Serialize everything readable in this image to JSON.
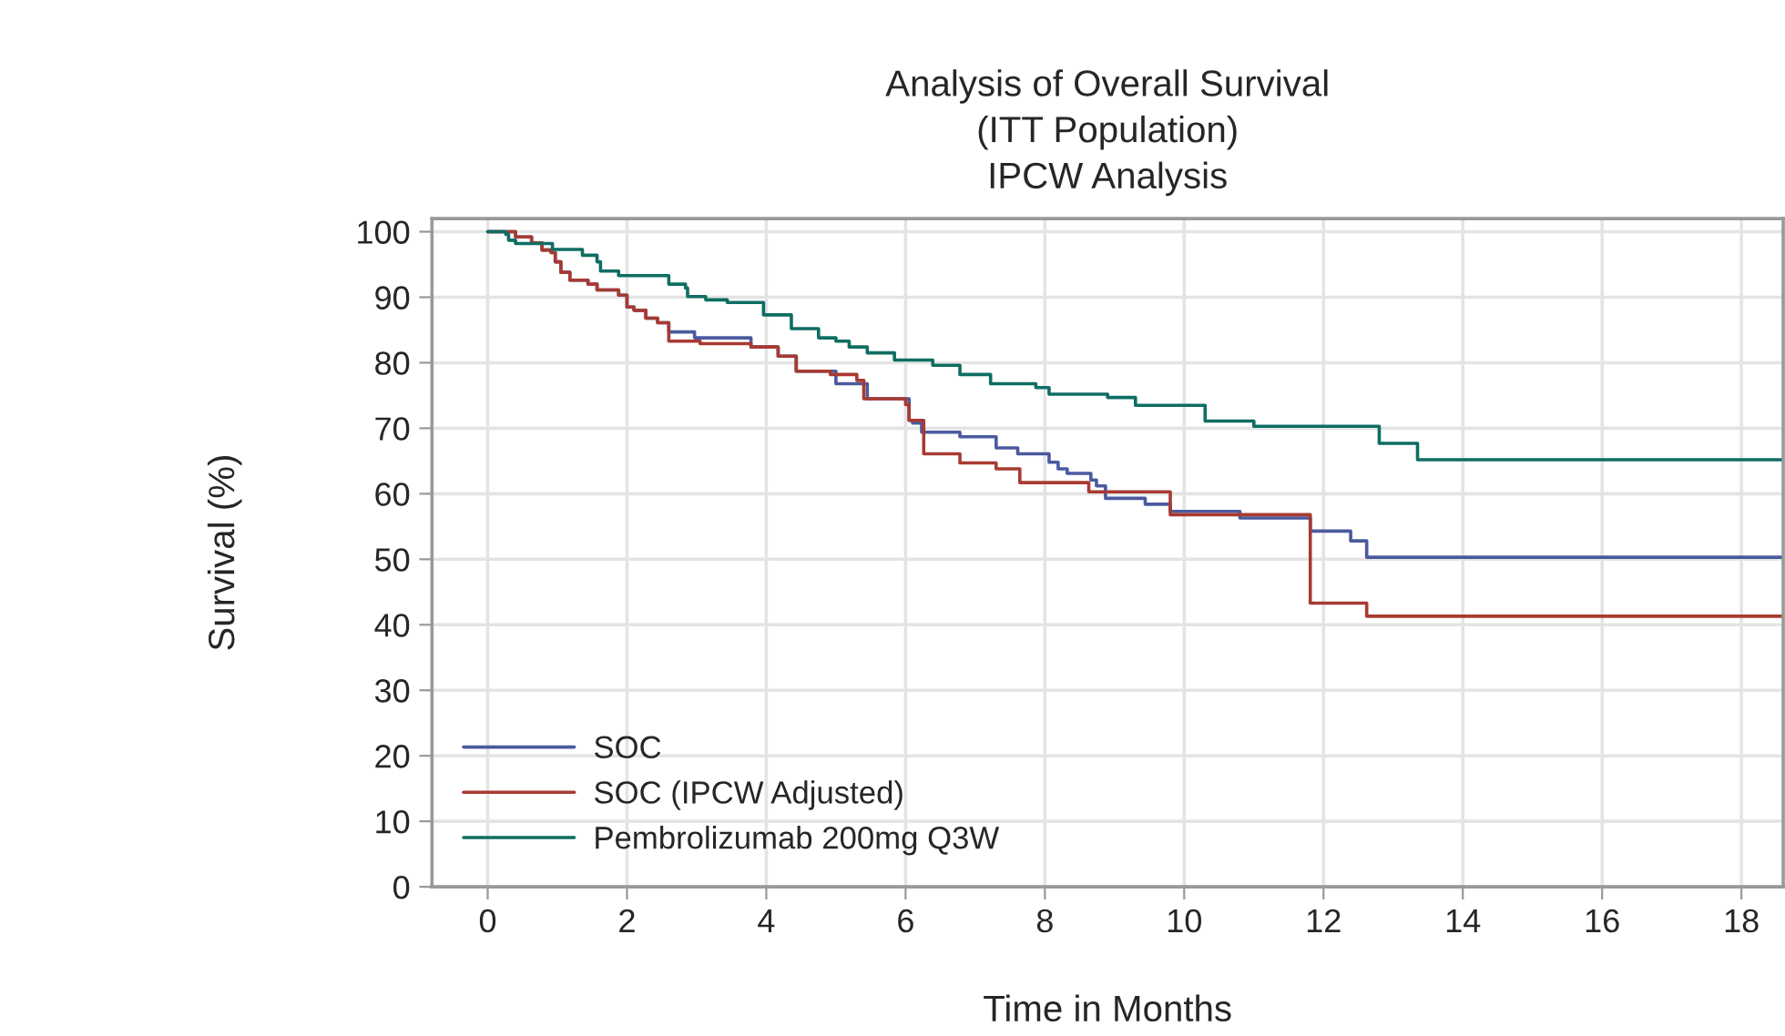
{
  "chart_data": {
    "type": "step",
    "title": "Analysis of Overall Survival\n(ITT Population)\nIPCW Analysis",
    "xlabel": "Time in Months",
    "ylabel": "Survival (%)",
    "xlim": [
      -0.8,
      18.6
    ],
    "ylim": [
      0,
      102
    ],
    "xticks": [
      0,
      2,
      4,
      6,
      8,
      10,
      12,
      14,
      16,
      18
    ],
    "yticks": [
      0,
      10,
      20,
      30,
      40,
      50,
      60,
      70,
      80,
      90,
      100
    ],
    "grid": true,
    "legend": "bottom left",
    "series": [
      {
        "name": "SOC",
        "color": "#4b5a9e",
        "x": [
          0,
          0.4,
          0.63,
          0.78,
          0.91,
          0.97,
          1.05,
          1.18,
          1.44,
          1.57,
          1.88,
          2.0,
          2.1,
          2.27,
          2.44,
          2.6,
          2.97,
          3.78,
          4.17,
          4.43,
          5.0,
          5.45,
          6.05,
          6.1,
          6.23,
          6.78,
          7.3,
          7.61,
          8.06,
          8.19,
          8.32,
          8.66,
          8.74,
          8.87,
          9.44,
          9.8,
          10.8,
          11.81,
          12.39,
          12.62,
          18.6
        ],
        "values": [
          100,
          99.2,
          98.3,
          97.2,
          96.8,
          95.4,
          93.8,
          92.6,
          92,
          91.1,
          90.3,
          88.5,
          88,
          86.8,
          86.1,
          84.7,
          83.8,
          82.4,
          81,
          78.7,
          76.8,
          74.5,
          71.2,
          70.8,
          69.4,
          68.7,
          67,
          66.1,
          64.8,
          63.8,
          63.1,
          62.1,
          61.2,
          59.3,
          58.4,
          57.3,
          56.3,
          54.3,
          52.8,
          50.3,
          50.3
        ]
      },
      {
        "name": "SOC (IPCW Adjusted)",
        "color": "#a83a32",
        "x": [
          0,
          0.4,
          0.63,
          0.78,
          0.91,
          0.97,
          1.05,
          1.18,
          1.44,
          1.57,
          1.88,
          2.0,
          2.1,
          2.27,
          2.44,
          2.6,
          3.05,
          3.78,
          4.17,
          4.43,
          4.92,
          5.3,
          5.4,
          6.0,
          6.05,
          6.26,
          6.78,
          7.3,
          7.64,
          8.63,
          9.8,
          11.81,
          12.62,
          18.6
        ],
        "values": [
          100,
          99.2,
          98.3,
          97.2,
          96.8,
          95.4,
          93.8,
          92.6,
          92,
          91.1,
          90.3,
          88.5,
          88,
          86.8,
          86.1,
          83.3,
          82.9,
          82.4,
          81,
          78.7,
          78.2,
          77.3,
          74.5,
          73.6,
          71.2,
          66.1,
          64.7,
          63.8,
          61.7,
          60.3,
          56.8,
          43.3,
          41.3,
          41.3
        ]
      },
      {
        "name": "Pembrolizumab 200mg Q3W",
        "color": "#0e6e63",
        "x": [
          0,
          0.26,
          0.3,
          0.4,
          0.93,
          1.36,
          1.57,
          1.62,
          1.88,
          2.6,
          2.84,
          2.87,
          3.13,
          3.44,
          3.96,
          4.36,
          4.75,
          5.0,
          5.19,
          5.45,
          5.84,
          6.39,
          6.78,
          7.22,
          7.87,
          8.06,
          8.9,
          9.3,
          10.3,
          11.0,
          12.8,
          13.35,
          18.6
        ],
        "values": [
          100,
          99.6,
          98.7,
          98.2,
          97.3,
          96.4,
          95.4,
          94,
          93.3,
          92,
          91.4,
          90.1,
          89.6,
          89.2,
          87.3,
          85.2,
          83.8,
          83.3,
          82.4,
          81.5,
          80.4,
          79.6,
          78.2,
          76.8,
          76.2,
          75.2,
          74.7,
          73.5,
          71.1,
          70.3,
          67.7,
          65.2,
          65.2
        ]
      }
    ]
  }
}
